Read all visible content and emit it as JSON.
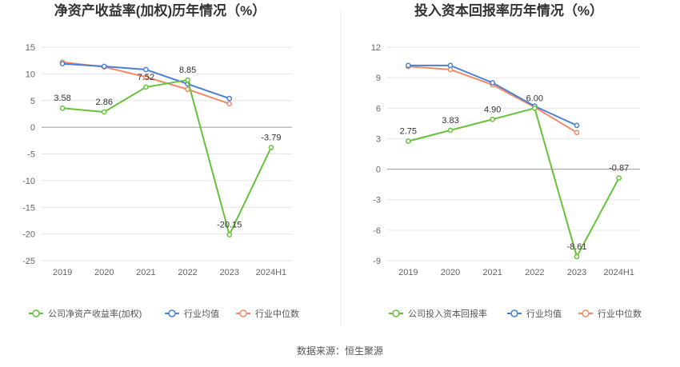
{
  "source_label": "数据来源：恒生聚源",
  "chart_data": [
    {
      "type": "line",
      "title": "净资产收益率(加权)历年情况（%）",
      "categories": [
        "2019",
        "2020",
        "2021",
        "2022",
        "2023",
        "2024H1"
      ],
      "yticks": [
        "15",
        "10",
        "5",
        "0",
        "-5",
        "-10",
        "-15",
        "-20",
        "-25"
      ],
      "ylim": [
        -25,
        15
      ],
      "grid": true,
      "legend_position": "bottom-left",
      "series": [
        {
          "name": "公司净资产收益率(加权)",
          "color": "#67c23a",
          "values": [
            3.58,
            2.86,
            7.52,
            8.85,
            -20.15,
            -3.79
          ],
          "labels": [
            "3.58",
            "2.86",
            "7.52",
            "8.85",
            "-20.15",
            "-3.79"
          ]
        },
        {
          "name": "行业均值",
          "color": "#4a7fd6",
          "values": [
            11.9,
            11.4,
            10.8,
            8.1,
            5.4,
            null
          ]
        },
        {
          "name": "行业中位数",
          "color": "#f08b67",
          "values": [
            12.2,
            11.3,
            9.4,
            7.1,
            4.4,
            null
          ]
        }
      ]
    },
    {
      "type": "line",
      "title": "投入资本回报率历年情况（%）",
      "categories": [
        "2019",
        "2020",
        "2021",
        "2022",
        "2023",
        "2024H1"
      ],
      "yticks": [
        "12",
        "9",
        "6",
        "3",
        "0",
        "-3",
        "-6",
        "-9"
      ],
      "ylim": [
        -9,
        12
      ],
      "grid": true,
      "legend_position": "bottom-left",
      "series": [
        {
          "name": "公司投入资本回报率",
          "color": "#67c23a",
          "values": [
            2.75,
            3.83,
            4.9,
            6.0,
            -8.61,
            -0.87
          ],
          "labels": [
            "2.75",
            "3.83",
            "4.90",
            "6.00",
            "-8.61",
            "-0.87"
          ]
        },
        {
          "name": "行业均值",
          "color": "#4a7fd6",
          "values": [
            10.2,
            10.2,
            8.5,
            6.2,
            4.3,
            null
          ]
        },
        {
          "name": "行业中位数",
          "color": "#f08b67",
          "values": [
            10.1,
            9.8,
            8.3,
            6.1,
            3.6,
            null
          ]
        }
      ]
    }
  ]
}
